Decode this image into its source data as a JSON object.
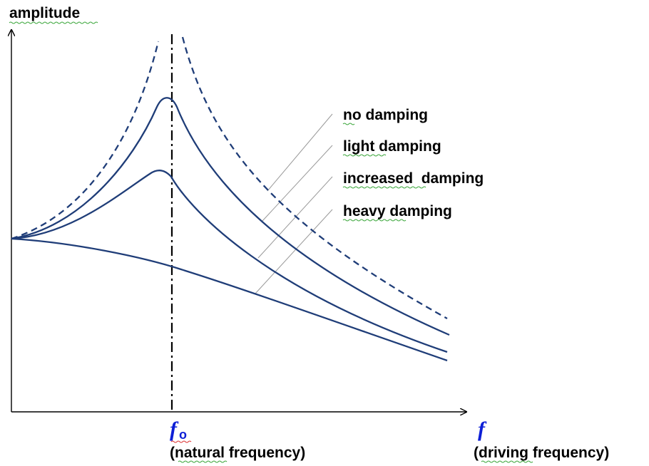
{
  "y_axis_label": "amplitude",
  "resonance_symbol": "f",
  "resonance_subscript": "o",
  "resonance_caption": "(natural frequency)",
  "x_axis_symbol": "f",
  "x_axis_caption": "(driving frequency)",
  "legend": [
    "no damping",
    "light damping",
    "increased  damping",
    "heavy damping"
  ],
  "colors": {
    "curve": "#1f3d78",
    "axis": "#000000",
    "symbol": "#0d1fd6",
    "leader": "#999999"
  }
}
